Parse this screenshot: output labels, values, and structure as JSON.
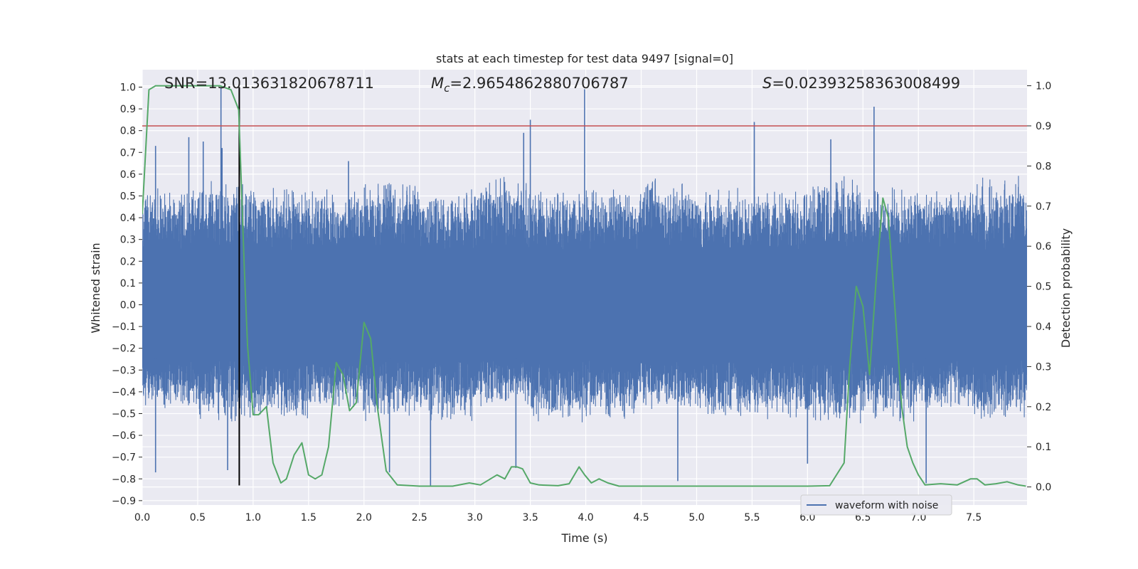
{
  "chart_data": {
    "type": "line",
    "title": "stats at each timestep for test data 9497 [signal=0]",
    "xlabel": "Time (s)",
    "ylabel": "Whitened strain",
    "ylabel_right": "Detection probability",
    "xlim": [
      0.0,
      7.98
    ],
    "ylim": [
      -0.92,
      1.08
    ],
    "ylim_right": [
      -0.045,
      1.04
    ],
    "x_ticks": [
      "0.0",
      "0.5",
      "1.0",
      "1.5",
      "2.0",
      "2.5",
      "3.0",
      "3.5",
      "4.0",
      "4.5",
      "5.0",
      "5.5",
      "6.0",
      "6.5",
      "7.0",
      "7.5"
    ],
    "y_ticks": [
      "1.0",
      "0.9",
      "0.8",
      "0.7",
      "0.6",
      "0.5",
      "0.4",
      "0.3",
      "0.2",
      "0.1",
      "0.0",
      "−0.1",
      "−0.2",
      "−0.3",
      "−0.4",
      "−0.5",
      "−0.6",
      "−0.7",
      "−0.8",
      "−0.9"
    ],
    "y_ticks_right": [
      "1.0",
      "0.9",
      "0.8",
      "0.7",
      "0.6",
      "0.5",
      "0.4",
      "0.3",
      "0.2",
      "0.1",
      "0.0"
    ],
    "grid": true,
    "legend_placement": "lower-right",
    "annotations": {
      "snr": "SNR=13.013631820678711",
      "mc_symbol": "M",
      "mc_sub": "c",
      "mc_value": "=2.9654862880706787",
      "s_symbol": "S",
      "s_value": "=0.02393258363008499"
    },
    "threshold_line": {
      "y": 0.9,
      "axis": "right",
      "color": "#c44e52"
    },
    "marker_line": {
      "x": 0.875,
      "y_range": [
        -0.83,
        1.0
      ],
      "color": "#000000"
    },
    "series": [
      {
        "name": "waveform with noise",
        "axis": "left",
        "color": "#4c72b0",
        "style": "noise-fill",
        "typical_upper": [
          0.5,
          0.55,
          0.5,
          0.5,
          0.55,
          0.5,
          0.55,
          0.5,
          0.5,
          0.55,
          0.5,
          0.5,
          0.55,
          0.5,
          0.5,
          0.55
        ],
        "typical_lower": [
          -0.45,
          -0.5,
          -0.5,
          -0.45,
          -0.5,
          -0.5,
          -0.45,
          -0.5,
          -0.5,
          -0.45,
          -0.5,
          -0.5,
          -0.5,
          -0.5,
          -0.45,
          -0.5
        ],
        "peaks": [
          {
            "x": 0.71,
            "y": 1.0
          },
          {
            "x": 0.72,
            "y": 0.72
          },
          {
            "x": 0.42,
            "y": 0.77
          },
          {
            "x": 0.55,
            "y": 0.75
          },
          {
            "x": 3.5,
            "y": 0.85
          },
          {
            "x": 3.44,
            "y": 0.79
          },
          {
            "x": 3.99,
            "y": 0.99
          },
          {
            "x": 5.52,
            "y": 0.84
          },
          {
            "x": 6.6,
            "y": 0.91
          },
          {
            "x": 6.21,
            "y": 0.76
          },
          {
            "x": 0.12,
            "y": 0.73
          },
          {
            "x": 1.86,
            "y": 0.66
          },
          {
            "x": 2.6,
            "y": -0.83
          },
          {
            "x": 7.07,
            "y": -0.82
          },
          {
            "x": 4.83,
            "y": -0.81
          },
          {
            "x": 0.12,
            "y": -0.77
          },
          {
            "x": 2.23,
            "y": -0.77
          },
          {
            "x": 3.37,
            "y": -0.75
          },
          {
            "x": 6.0,
            "y": -0.73
          },
          {
            "x": 0.77,
            "y": -0.76
          }
        ]
      },
      {
        "name": "",
        "axis": "right",
        "color": "#55a868",
        "x": [
          0.0,
          0.06,
          0.12,
          0.2,
          0.4,
          0.6,
          0.7,
          0.8,
          0.87,
          0.92,
          0.95,
          0.98,
          1.0,
          1.05,
          1.12,
          1.18,
          1.25,
          1.3,
          1.37,
          1.44,
          1.5,
          1.56,
          1.62,
          1.68,
          1.75,
          1.81,
          1.87,
          1.93,
          2.0,
          2.06,
          2.12,
          2.2,
          2.3,
          2.5,
          2.8,
          2.95,
          3.05,
          3.2,
          3.27,
          3.33,
          3.38,
          3.43,
          3.5,
          3.58,
          3.75,
          3.85,
          3.94,
          3.99,
          4.05,
          4.12,
          4.2,
          4.3,
          4.5,
          5.0,
          5.5,
          6.0,
          6.2,
          6.33,
          6.38,
          6.44,
          6.5,
          6.56,
          6.62,
          6.68,
          6.73,
          6.79,
          6.85,
          6.9,
          6.95,
          7.0,
          7.06,
          7.2,
          7.35,
          7.47,
          7.53,
          7.6,
          7.7,
          7.8,
          7.9,
          7.97
        ],
        "values": [
          0.68,
          0.99,
          1.0,
          1.0,
          1.0,
          1.0,
          1.0,
          0.99,
          0.94,
          0.55,
          0.35,
          0.25,
          0.18,
          0.18,
          0.2,
          0.06,
          0.01,
          0.02,
          0.08,
          0.11,
          0.03,
          0.02,
          0.03,
          0.1,
          0.31,
          0.28,
          0.19,
          0.21,
          0.41,
          0.37,
          0.2,
          0.04,
          0.005,
          0.002,
          0.002,
          0.01,
          0.005,
          0.03,
          0.02,
          0.05,
          0.05,
          0.045,
          0.01,
          0.005,
          0.003,
          0.008,
          0.05,
          0.03,
          0.01,
          0.02,
          0.01,
          0.002,
          0.002,
          0.002,
          0.002,
          0.002,
          0.003,
          0.06,
          0.3,
          0.5,
          0.45,
          0.28,
          0.52,
          0.72,
          0.67,
          0.44,
          0.2,
          0.1,
          0.06,
          0.03,
          0.005,
          0.008,
          0.005,
          0.02,
          0.02,
          0.005,
          0.008,
          0.013,
          0.005,
          0.002
        ]
      }
    ]
  }
}
